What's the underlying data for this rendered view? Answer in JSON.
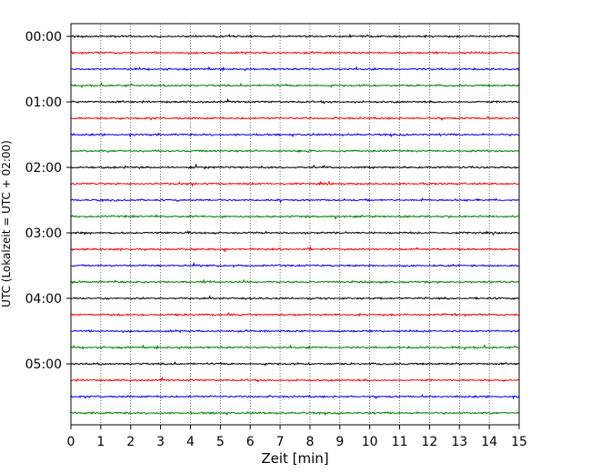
{
  "chart_data": {
    "type": "line",
    "title": "",
    "xlabel": "Zeit  [min]",
    "ylabel": "UTC (Lokalzeit = UTC + 02:00)",
    "xlim": [
      0,
      15
    ],
    "x_ticks": [
      "0",
      "1",
      "2",
      "3",
      "4",
      "5",
      "6",
      "7",
      "8",
      "9",
      "10",
      "11",
      "12",
      "13",
      "14",
      "15"
    ],
    "y_ticks": [
      "00:00",
      "01:00",
      "02:00",
      "03:00",
      "04:00",
      "05:00"
    ],
    "trace_interval_minutes": 15,
    "trace_count": 24,
    "colors_cycle": [
      "#000000",
      "#ff0000",
      "#0000ff",
      "#008000"
    ],
    "grid": "vertical dotted at each minute"
  }
}
